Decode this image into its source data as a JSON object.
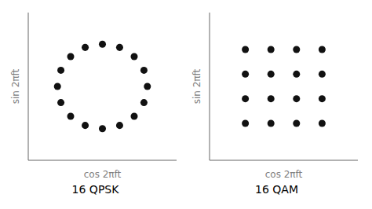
{
  "chart_data": [
    {
      "type": "scatter",
      "title": "16 QPSK",
      "x_label": "cos 2πft",
      "y_label": "sin 2πft",
      "x": [
        0,
        0.383,
        0.707,
        0.924,
        1,
        0.924,
        0.707,
        0.383,
        0,
        -0.383,
        -0.707,
        -0.924,
        -1,
        -0.924,
        -0.707,
        -0.383
      ],
      "values": [
        1,
        0.924,
        0.707,
        0.383,
        0,
        -0.383,
        -0.707,
        -0.924,
        -1,
        -0.924,
        -0.707,
        -0.383,
        0,
        0.383,
        0.707,
        0.924
      ],
      "xlim": [
        -1.65,
        1.65
      ],
      "ylim": [
        -1.75,
        1.75
      ],
      "color": "#111111",
      "tick_labels": false,
      "grid": false
    },
    {
      "type": "scatter",
      "title": "16 QAM",
      "x_label": "cos 2πft",
      "y_label": "sin 2πft",
      "x": [
        -3,
        -3,
        -3,
        -3,
        -1,
        -1,
        -1,
        -1,
        1,
        1,
        1,
        1,
        3,
        3,
        3,
        3
      ],
      "values": [
        -3,
        -1,
        1,
        3,
        -3,
        -1,
        1,
        3,
        -3,
        -1,
        1,
        3,
        -3,
        -1,
        1,
        3
      ],
      "xlim": [
        -5.8,
        5.8
      ],
      "ylim": [
        -6.0,
        6.0
      ],
      "color": "#111111",
      "tick_labels": false,
      "grid": false
    }
  ]
}
